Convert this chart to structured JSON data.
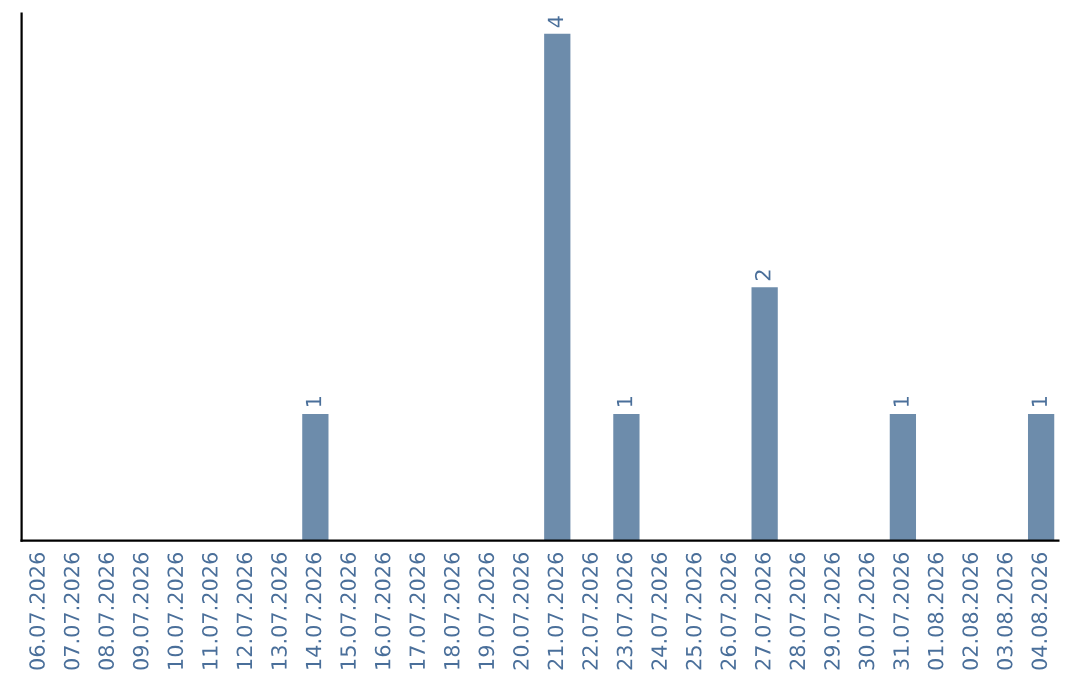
{
  "chart_data": {
    "type": "bar",
    "categories": [
      "06.07.2026",
      "07.07.2026",
      "08.07.2026",
      "09.07.2026",
      "10.07.2026",
      "11.07.2026",
      "12.07.2026",
      "13.07.2026",
      "14.07.2026",
      "15.07.2026",
      "16.07.2026",
      "17.07.2026",
      "18.07.2026",
      "19.07.2026",
      "20.07.2026",
      "21.07.2026",
      "22.07.2026",
      "23.07.2026",
      "24.07.2026",
      "25.07.2026",
      "26.07.2026",
      "27.07.2026",
      "28.07.2026",
      "29.07.2026",
      "30.07.2026",
      "31.07.2026",
      "01.08.2026",
      "02.08.2026",
      "03.08.2026",
      "04.08.2026"
    ],
    "values": [
      0,
      0,
      0,
      0,
      0,
      0,
      0,
      0,
      1,
      0,
      0,
      0,
      0,
      0,
      0,
      4,
      0,
      1,
      0,
      0,
      0,
      2,
      0,
      0,
      0,
      1,
      0,
      0,
      0,
      1
    ],
    "value_labels": [
      null,
      null,
      null,
      null,
      null,
      null,
      null,
      null,
      "1",
      null,
      null,
      null,
      null,
      null,
      null,
      "4",
      null,
      "1",
      null,
      null,
      null,
      "2",
      null,
      null,
      null,
      "1",
      null,
      null,
      null,
      "1"
    ],
    "color": "#6d8cab",
    "tick_labels": "x",
    "grid": false,
    "legend": false
  }
}
